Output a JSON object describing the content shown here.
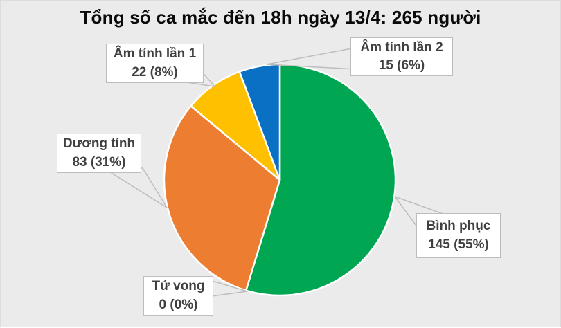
{
  "chart_data": {
    "type": "pie",
    "title": "Tổng số ca mắc đến 18h ngày 13/4: 265 người",
    "total": 265,
    "start_angle_deg": 0,
    "direction": "clockwise",
    "legend_position": "none",
    "label_style": "callout-boxes-with-leader-lines",
    "slices": [
      {
        "label": "Bình phục",
        "value": 145,
        "pct": 55,
        "display": "145 (55%)",
        "color": "#00A651"
      },
      {
        "label": "Tử vong",
        "value": 0,
        "pct": 0,
        "display": "0 (0%)",
        "color": null
      },
      {
        "label": "Dương tính",
        "value": 83,
        "pct": 31,
        "display": "83 (31%)",
        "color": "#ED7D31"
      },
      {
        "label": "Âm tính lần 1",
        "value": 22,
        "pct": 8,
        "display": "22 (8%)",
        "color": "#FFC000"
      },
      {
        "label": "Âm tính lần 2",
        "value": 15,
        "pct": 6,
        "display": "15 (6%)",
        "color": "#0A70C4"
      }
    ]
  },
  "style": {
    "background": "#EBEBEB",
    "slice_border": "#FFFFFF",
    "callout_background": "#FFFFFF",
    "callout_border": "#BDBDBD",
    "callout_text": "#404040",
    "title_color": "#0A0A0A"
  }
}
